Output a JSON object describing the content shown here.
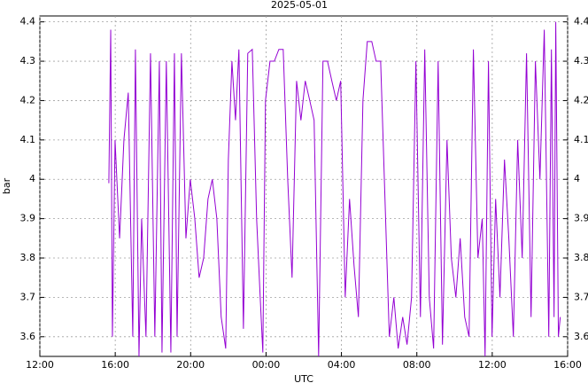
{
  "chart_data": {
    "type": "line",
    "title": "2025-05-01",
    "x_label": "UTC",
    "y_label": "bar",
    "xlim": [
      0,
      28
    ],
    "xticks": [
      {
        "value": 0,
        "label": "12:00"
      },
      {
        "value": 4,
        "label": "16:00"
      },
      {
        "value": 8,
        "label": "20:00"
      },
      {
        "value": 12,
        "label": "00:00"
      },
      {
        "value": 16,
        "label": "04:00"
      },
      {
        "value": 20,
        "label": "08:00"
      },
      {
        "value": 24,
        "label": "12:00"
      },
      {
        "value": 28,
        "label": "16:00"
      }
    ],
    "ylim": [
      3.55,
      4.415
    ],
    "yticks": [
      3.6,
      3.7,
      3.8,
      3.9,
      4,
      4.1,
      4.2,
      4.3,
      4.4
    ],
    "grid": true,
    "series": [
      {
        "color": "#9400d3",
        "x": [
          3.66,
          3.76,
          3.85,
          3.99,
          4.23,
          4.46,
          4.69,
          4.93,
          5.07,
          5.26,
          5.4,
          5.63,
          5.87,
          6.1,
          6.34,
          6.48,
          6.71,
          6.95,
          7.14,
          7.28,
          7.51,
          7.75,
          7.98,
          8.22,
          8.45,
          8.69,
          8.92,
          9.15,
          9.39,
          9.62,
          9.86,
          10.0,
          10.19,
          10.38,
          10.56,
          10.8,
          11.03,
          11.27,
          11.5,
          11.69,
          11.83,
          11.97,
          12.21,
          12.44,
          12.68,
          12.91,
          13.15,
          13.38,
          13.62,
          13.85,
          14.08,
          14.32,
          14.55,
          14.79,
          15.02,
          15.26,
          15.49,
          15.73,
          15.96,
          16.2,
          16.43,
          16.67,
          16.9,
          17.14,
          17.37,
          17.61,
          17.84,
          18.08,
          18.31,
          18.54,
          18.78,
          19.01,
          19.25,
          19.48,
          19.72,
          19.95,
          20.19,
          20.42,
          20.66,
          20.89,
          21.13,
          21.36,
          21.6,
          21.83,
          22.07,
          22.3,
          22.54,
          22.77,
          23.0,
          23.24,
          23.47,
          23.62,
          23.8,
          23.99,
          24.18,
          24.41,
          24.65,
          24.88,
          25.12,
          25.35,
          25.59,
          25.82,
          26.06,
          26.29,
          26.53,
          26.76,
          27.0,
          27.14,
          27.28,
          27.37,
          27.51,
          27.61
        ],
        "values": [
          3.99,
          4.38,
          3.6,
          4.1,
          3.85,
          4.1,
          4.22,
          3.6,
          4.33,
          3.55,
          3.9,
          3.6,
          4.32,
          3.6,
          4.3,
          3.56,
          4.3,
          3.56,
          4.32,
          3.6,
          4.32,
          3.85,
          4.0,
          3.9,
          3.75,
          3.8,
          3.95,
          4.0,
          3.9,
          3.65,
          3.57,
          4.05,
          4.3,
          4.15,
          4.33,
          3.62,
          4.32,
          4.33,
          3.9,
          3.7,
          3.56,
          4.2,
          4.3,
          4.3,
          4.33,
          4.33,
          4.0,
          3.75,
          4.25,
          4.15,
          4.25,
          4.2,
          4.15,
          3.55,
          4.3,
          4.3,
          4.25,
          4.2,
          4.25,
          3.7,
          3.95,
          3.78,
          3.65,
          4.2,
          4.35,
          4.35,
          4.3,
          4.3,
          3.95,
          3.6,
          3.7,
          3.57,
          3.65,
          3.58,
          3.7,
          4.3,
          3.65,
          4.33,
          3.7,
          3.57,
          4.3,
          3.58,
          4.1,
          3.8,
          3.7,
          3.85,
          3.65,
          3.6,
          4.33,
          3.8,
          3.9,
          3.55,
          4.3,
          3.6,
          3.95,
          3.7,
          4.05,
          3.85,
          3.6,
          4.1,
          3.8,
          4.32,
          3.65,
          4.3,
          4.0,
          4.38,
          3.6,
          4.33,
          3.65,
          4.4,
          3.6,
          3.65
        ]
      }
    ]
  }
}
